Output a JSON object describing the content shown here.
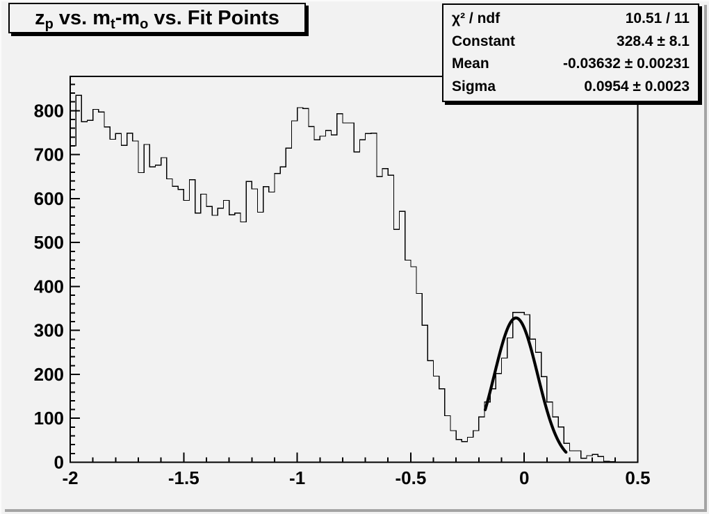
{
  "title": {
    "plain": "z_p vs. m_t-m_o vs. Fit Points",
    "parts": [
      {
        "text": "z"
      },
      {
        "text": "p",
        "sub": true
      },
      {
        "text": " vs. m"
      },
      {
        "text": "t",
        "sub": true
      },
      {
        "text": "-m"
      },
      {
        "text": "o",
        "sub": true
      },
      {
        "text": " vs. Fit Points"
      }
    ]
  },
  "stats": {
    "rows": [
      {
        "label": "χ² / ndf",
        "value": "10.51 / 11"
      },
      {
        "label": "Constant",
        "value": "328.4 ± 8.1"
      },
      {
        "label": "Mean",
        "value": "-0.03632 ± 0.00231"
      },
      {
        "label": "Sigma",
        "value": "0.0954 ± 0.0023"
      }
    ]
  },
  "chart_data": {
    "type": "bar",
    "subtype": "step-histogram",
    "title": "z_p vs. m_t-m_o vs. Fit Points",
    "xlabel": "",
    "ylabel": "",
    "xlim": [
      -2,
      0.5
    ],
    "ylim": [
      0,
      878
    ],
    "x_start": -2,
    "bin_width": 0.025,
    "values": [
      720,
      835,
      775,
      778,
      803,
      797,
      763,
      735,
      748,
      721,
      749,
      731,
      659,
      723,
      672,
      676,
      693,
      645,
      628,
      621,
      596,
      643,
      567,
      610,
      582,
      562,
      578,
      596,
      563,
      567,
      547,
      639,
      622,
      569,
      627,
      615,
      657,
      672,
      715,
      777,
      807,
      805,
      764,
      734,
      742,
      755,
      745,
      793,
      772,
      772,
      706,
      734,
      748,
      749,
      650,
      668,
      653,
      530,
      571,
      460,
      445,
      384,
      312,
      231,
      196,
      167,
      106,
      72,
      52,
      47,
      57,
      72,
      103,
      137,
      167,
      202,
      237,
      283,
      341,
      341,
      336,
      280,
      250,
      195,
      137,
      103,
      80,
      43,
      26,
      26,
      9,
      15,
      18,
      13,
      2,
      1,
      0,
      0,
      0,
      0
    ],
    "x_ticks": [
      -2,
      -1.5,
      -1,
      -0.5,
      0,
      0.5
    ],
    "x_tick_labels": [
      "-2",
      "-1.5",
      "-1",
      "-0.5",
      "0",
      "0.5"
    ],
    "x_minor_step": 0.1,
    "y_ticks": [
      0,
      100,
      200,
      300,
      400,
      500,
      600,
      700,
      800
    ],
    "y_tick_labels": [
      "0",
      "100",
      "200",
      "300",
      "400",
      "500",
      "600",
      "700",
      "800"
    ],
    "y_minor_step": 20,
    "grid": false,
    "legend": false,
    "fit": {
      "type": "gaussian",
      "constant": 328.4,
      "mean": -0.03632,
      "sigma": 0.0954,
      "draw_range": [
        -0.172,
        0.185
      ]
    }
  },
  "colors": {
    "canvas_bg": "#f2f2f2",
    "line": "#000000",
    "fit_line": "#000000",
    "box_bg": "#f2f2f2",
    "box_border": "#000000",
    "bevel_shadow": "#a4a4a4",
    "bevel_highlight": "#fbfbfb"
  }
}
